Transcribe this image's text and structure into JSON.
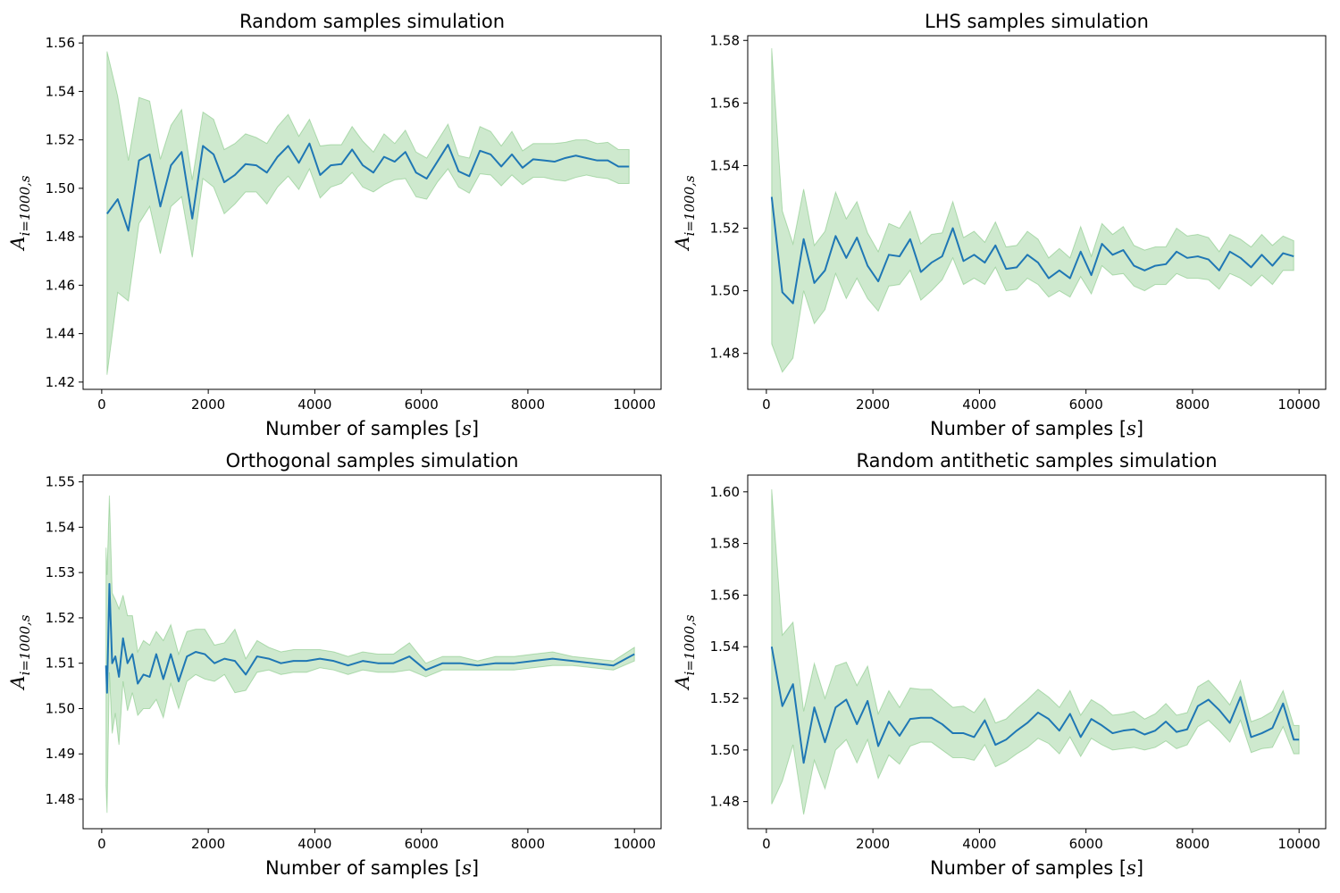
{
  "chart_data": [
    {
      "type": "line",
      "title": "Random samples simulation",
      "xlabel": "Number of samples [s]",
      "ylabel": "A_{i=1000,s}",
      "xlim": [
        -350,
        10500
      ],
      "ylim": [
        1.417,
        1.563
      ],
      "xticks": [
        0,
        2000,
        4000,
        6000,
        8000,
        10000
      ],
      "xtick_labels": [
        "0",
        "2000",
        "4000",
        "6000",
        "8000",
        "10000"
      ],
      "yticks": [
        1.42,
        1.44,
        1.46,
        1.48,
        1.5,
        1.52,
        1.54,
        1.56
      ],
      "ytick_labels": [
        "1.42",
        "1.44",
        "1.46",
        "1.48",
        "1.50",
        "1.52",
        "1.54",
        "1.56"
      ],
      "legend": "none",
      "grid": false,
      "x": [
        100,
        300,
        500,
        700,
        900,
        1100,
        1300,
        1500,
        1700,
        1900,
        2100,
        2300,
        2500,
        2700,
        2900,
        3100,
        3300,
        3500,
        3700,
        3900,
        4100,
        4300,
        4500,
        4700,
        4900,
        5100,
        5300,
        5500,
        5700,
        5900,
        6100,
        6300,
        6500,
        6700,
        6900,
        7100,
        7300,
        7500,
        7700,
        7900,
        8100,
        8300,
        8500,
        8700,
        8900,
        9100,
        9300,
        9500,
        9700,
        9900
      ],
      "series": [
        {
          "role": "mean",
          "values": [
            1.4895,
            1.4955,
            1.4825,
            1.5115,
            1.514,
            1.4925,
            1.5095,
            1.515,
            1.4875,
            1.5175,
            1.514,
            1.5025,
            1.5055,
            1.51,
            1.5095,
            1.5065,
            1.513,
            1.5175,
            1.5105,
            1.5185,
            1.5055,
            1.5095,
            1.51,
            1.516,
            1.5095,
            1.5065,
            1.513,
            1.511,
            1.515,
            1.5065,
            1.504,
            1.511,
            1.518,
            1.507,
            1.505,
            1.5155,
            1.514,
            1.509,
            1.514,
            1.5085,
            1.512,
            1.5115,
            1.511,
            1.5125,
            1.5135,
            1.5125,
            1.5115,
            1.5115,
            1.509,
            1.509
          ]
        },
        {
          "role": "lower",
          "values": [
            1.423,
            1.457,
            1.4535,
            1.4855,
            1.4925,
            1.473,
            1.4925,
            1.4965,
            1.4715,
            1.504,
            1.5005,
            1.4895,
            1.4935,
            1.4985,
            1.4985,
            1.4935,
            1.5005,
            1.505,
            1.4995,
            1.508,
            1.496,
            1.5005,
            1.502,
            1.5065,
            1.5005,
            1.4985,
            1.5015,
            1.5035,
            1.504,
            1.4965,
            1.4955,
            1.5025,
            1.508,
            1.5005,
            1.498,
            1.506,
            1.5055,
            1.501,
            1.5055,
            1.5015,
            1.5045,
            1.5045,
            1.5035,
            1.503,
            1.5045,
            1.5055,
            1.5045,
            1.504,
            1.502,
            1.502
          ]
        },
        {
          "role": "upper",
          "values": [
            1.5565,
            1.538,
            1.5115,
            1.5375,
            1.536,
            1.512,
            1.526,
            1.5325,
            1.5035,
            1.5315,
            1.5285,
            1.516,
            1.5185,
            1.5225,
            1.521,
            1.5185,
            1.5255,
            1.5305,
            1.5215,
            1.5285,
            1.5175,
            1.518,
            1.518,
            1.5255,
            1.5195,
            1.515,
            1.5225,
            1.5185,
            1.524,
            1.515,
            1.5125,
            1.5195,
            1.5265,
            1.5135,
            1.5125,
            1.5255,
            1.5235,
            1.5175,
            1.5235,
            1.5155,
            1.5185,
            1.5185,
            1.5185,
            1.519,
            1.52,
            1.52,
            1.5185,
            1.519,
            1.516,
            1.516
          ]
        }
      ]
    },
    {
      "type": "line",
      "title": "LHS samples simulation",
      "xlabel": "Number of samples [s]",
      "ylabel": "A_{i=1000,s}",
      "xlim": [
        -350,
        10500
      ],
      "ylim": [
        1.4685,
        1.5815
      ],
      "xticks": [
        0,
        2000,
        4000,
        6000,
        8000,
        10000
      ],
      "xtick_labels": [
        "0",
        "2000",
        "4000",
        "6000",
        "8000",
        "10000"
      ],
      "yticks": [
        1.48,
        1.5,
        1.52,
        1.54,
        1.56,
        1.58
      ],
      "ytick_labels": [
        "1.48",
        "1.50",
        "1.52",
        "1.54",
        "1.56",
        "1.58"
      ],
      "legend": "none",
      "grid": false,
      "x": [
        100,
        300,
        500,
        700,
        900,
        1100,
        1300,
        1500,
        1700,
        1900,
        2100,
        2300,
        2500,
        2700,
        2900,
        3100,
        3300,
        3500,
        3700,
        3900,
        4100,
        4300,
        4500,
        4700,
        4900,
        5100,
        5300,
        5500,
        5700,
        5900,
        6100,
        6300,
        6500,
        6700,
        6900,
        7100,
        7300,
        7500,
        7700,
        7900,
        8100,
        8300,
        8500,
        8700,
        8900,
        9100,
        9300,
        9500,
        9700,
        9900
      ],
      "series": [
        {
          "role": "mean",
          "values": [
            1.53,
            1.4995,
            1.496,
            1.5165,
            1.5025,
            1.5065,
            1.5175,
            1.5105,
            1.517,
            1.508,
            1.503,
            1.5115,
            1.511,
            1.5165,
            1.506,
            1.509,
            1.511,
            1.52,
            1.5095,
            1.5115,
            1.509,
            1.5145,
            1.507,
            1.5075,
            1.5115,
            1.509,
            1.504,
            1.5065,
            1.504,
            1.5125,
            1.505,
            1.515,
            1.5115,
            1.513,
            1.508,
            1.5065,
            1.508,
            1.5085,
            1.5125,
            1.5105,
            1.511,
            1.51,
            1.5065,
            1.5125,
            1.5105,
            1.5075,
            1.5115,
            1.508,
            1.512,
            1.511
          ]
        },
        {
          "role": "lower",
          "values": [
            1.483,
            1.474,
            1.4785,
            1.5,
            1.4895,
            1.494,
            1.5055,
            1.4975,
            1.504,
            1.4975,
            1.4935,
            1.5015,
            1.502,
            1.5065,
            1.497,
            1.5,
            1.5035,
            1.5105,
            1.502,
            1.504,
            1.502,
            1.5075,
            1.5,
            1.5005,
            1.504,
            1.502,
            1.498,
            1.5,
            1.498,
            1.5045,
            1.499,
            1.508,
            1.505,
            1.5055,
            1.5015,
            1.5,
            1.502,
            1.502,
            1.5055,
            1.504,
            1.504,
            1.5035,
            1.5005,
            1.5055,
            1.504,
            1.5015,
            1.505,
            1.502,
            1.5065,
            1.5065
          ]
        },
        {
          "role": "upper",
          "values": [
            1.5775,
            1.5255,
            1.515,
            1.5325,
            1.5145,
            1.519,
            1.5315,
            1.523,
            1.5285,
            1.5185,
            1.5125,
            1.5215,
            1.52,
            1.5255,
            1.515,
            1.518,
            1.5185,
            1.5285,
            1.517,
            1.519,
            1.5155,
            1.522,
            1.514,
            1.5145,
            1.519,
            1.5165,
            1.5105,
            1.5135,
            1.5105,
            1.5205,
            1.511,
            1.5215,
            1.518,
            1.5205,
            1.5145,
            1.513,
            1.514,
            1.514,
            1.52,
            1.5175,
            1.518,
            1.517,
            1.5125,
            1.518,
            1.5165,
            1.514,
            1.518,
            1.5145,
            1.5175,
            1.516
          ]
        }
      ]
    },
    {
      "type": "line",
      "title": "Orthogonal samples simulation",
      "xlabel": "Number of samples [s]",
      "ylabel": "A_{i=1000,s}",
      "xlim": [
        -350,
        10500
      ],
      "ylim": [
        1.4735,
        1.5515
      ],
      "xticks": [
        0,
        2000,
        4000,
        6000,
        8000,
        10000
      ],
      "xtick_labels": [
        "0",
        "2000",
        "4000",
        "6000",
        "8000",
        "10000"
      ],
      "yticks": [
        1.48,
        1.49,
        1.5,
        1.51,
        1.52,
        1.53,
        1.54,
        1.55
      ],
      "ytick_labels": [
        "1.48",
        "1.49",
        "1.50",
        "1.51",
        "1.52",
        "1.53",
        "1.54",
        "1.55"
      ],
      "legend": "none",
      "grid": false,
      "x": [
        81,
        100,
        144,
        196,
        256,
        324,
        400,
        484,
        576,
        676,
        784,
        900,
        1024,
        1156,
        1296,
        1444,
        1600,
        1764,
        1936,
        2116,
        2304,
        2500,
        2704,
        2916,
        3136,
        3364,
        3600,
        3844,
        4096,
        4356,
        4624,
        4900,
        5184,
        5476,
        5776,
        6084,
        6400,
        6724,
        7056,
        7396,
        7744,
        8100,
        8464,
        8836,
        9216,
        9604,
        10000
      ],
      "series": [
        {
          "role": "mean",
          "values": [
            1.5095,
            1.5035,
            1.5275,
            1.51,
            1.5115,
            1.507,
            1.5155,
            1.51,
            1.512,
            1.5055,
            1.5075,
            1.507,
            1.512,
            1.5065,
            1.512,
            1.506,
            1.5115,
            1.5125,
            1.512,
            1.51,
            1.511,
            1.5105,
            1.5075,
            1.5115,
            1.511,
            1.51,
            1.5105,
            1.5105,
            1.511,
            1.5105,
            1.5095,
            1.5105,
            1.51,
            1.51,
            1.5115,
            1.5085,
            1.51,
            1.51,
            1.5095,
            1.51,
            1.51,
            1.5105,
            1.511,
            1.5105,
            1.51,
            1.5095,
            1.512
          ]
        },
        {
          "role": "lower",
          "values": [
            1.483,
            1.477,
            1.508,
            1.4945,
            1.499,
            1.492,
            1.506,
            1.4995,
            1.5035,
            1.4985,
            1.5,
            1.5,
            1.502,
            1.498,
            1.5055,
            1.5,
            1.506,
            1.5075,
            1.5065,
            1.506,
            1.5075,
            1.5035,
            1.504,
            1.508,
            1.5085,
            1.5075,
            1.508,
            1.508,
            1.509,
            1.5085,
            1.5075,
            1.5085,
            1.508,
            1.508,
            1.5085,
            1.507,
            1.5085,
            1.5085,
            1.5085,
            1.5085,
            1.5085,
            1.509,
            1.5095,
            1.5095,
            1.509,
            1.5085,
            1.5105
          ]
        },
        {
          "role": "upper",
          "values": [
            1.5355,
            1.5295,
            1.547,
            1.5255,
            1.524,
            1.522,
            1.525,
            1.5205,
            1.5205,
            1.5125,
            1.515,
            1.514,
            1.517,
            1.515,
            1.5185,
            1.512,
            1.517,
            1.5175,
            1.5175,
            1.514,
            1.5145,
            1.5175,
            1.511,
            1.515,
            1.5135,
            1.5125,
            1.513,
            1.513,
            1.513,
            1.5125,
            1.5115,
            1.5125,
            1.512,
            1.512,
            1.5145,
            1.51,
            1.5115,
            1.5115,
            1.5105,
            1.5115,
            1.5115,
            1.512,
            1.5125,
            1.5115,
            1.511,
            1.5105,
            1.5135
          ]
        }
      ]
    },
    {
      "type": "line",
      "title": "Random antithetic samples simulation",
      "xlabel": "Number of samples [s]",
      "ylabel": "A_{i=1000,s}",
      "xlim": [
        -350,
        10500
      ],
      "ylim": [
        1.4695,
        1.6065
      ],
      "xticks": [
        0,
        2000,
        4000,
        6000,
        8000,
        10000
      ],
      "xtick_labels": [
        "0",
        "2000",
        "4000",
        "6000",
        "8000",
        "10000"
      ],
      "yticks": [
        1.48,
        1.5,
        1.52,
        1.54,
        1.56,
        1.58,
        1.6
      ],
      "ytick_labels": [
        "1.48",
        "1.50",
        "1.52",
        "1.54",
        "1.56",
        "1.58",
        "1.60"
      ],
      "legend": "none",
      "grid": false,
      "x": [
        100,
        300,
        500,
        700,
        900,
        1100,
        1300,
        1500,
        1700,
        1900,
        2100,
        2300,
        2500,
        2700,
        2900,
        3100,
        3300,
        3500,
        3700,
        3900,
        4100,
        4300,
        4500,
        4700,
        4900,
        5100,
        5300,
        5500,
        5700,
        5900,
        6100,
        6300,
        6500,
        6700,
        6900,
        7100,
        7300,
        7500,
        7700,
        7900,
        8100,
        8300,
        8500,
        8700,
        8900,
        9100,
        9300,
        9500,
        9700,
        9900,
        10000
      ],
      "series": [
        {
          "role": "mean",
          "values": [
            1.54,
            1.517,
            1.5255,
            1.495,
            1.5165,
            1.503,
            1.5165,
            1.5195,
            1.51,
            1.519,
            1.5015,
            1.511,
            1.5055,
            1.512,
            1.5125,
            1.5125,
            1.51,
            1.5065,
            1.5065,
            1.505,
            1.5115,
            1.502,
            1.504,
            1.5075,
            1.5105,
            1.5145,
            1.512,
            1.5075,
            1.514,
            1.505,
            1.512,
            1.5095,
            1.5065,
            1.5075,
            1.508,
            1.506,
            1.5075,
            1.511,
            1.507,
            1.508,
            1.517,
            1.5195,
            1.5155,
            1.5105,
            1.5205,
            1.505,
            1.5065,
            1.5085,
            1.518,
            1.504,
            1.504
          ]
        },
        {
          "role": "lower",
          "values": [
            1.479,
            1.488,
            1.502,
            1.475,
            1.496,
            1.485,
            1.5,
            1.504,
            1.495,
            1.504,
            1.489,
            1.498,
            1.4945,
            1.5015,
            1.503,
            1.503,
            1.5,
            1.497,
            1.497,
            1.496,
            1.502,
            1.4935,
            1.4955,
            1.4985,
            1.501,
            1.5045,
            1.5025,
            1.4985,
            1.505,
            1.4975,
            1.5045,
            1.502,
            1.5,
            1.5005,
            1.501,
            1.5,
            1.501,
            1.5035,
            1.5005,
            1.502,
            1.509,
            1.5115,
            1.5075,
            1.503,
            1.5115,
            1.499,
            1.5005,
            1.501,
            1.509,
            1.4985,
            1.4985
          ]
        },
        {
          "role": "upper",
          "values": [
            1.601,
            1.5445,
            1.5495,
            1.515,
            1.5335,
            1.52,
            1.5325,
            1.534,
            1.525,
            1.5325,
            1.514,
            1.523,
            1.5165,
            1.524,
            1.5235,
            1.5235,
            1.52,
            1.5165,
            1.517,
            1.5145,
            1.52,
            1.5105,
            1.512,
            1.516,
            1.5195,
            1.5235,
            1.5205,
            1.5165,
            1.523,
            1.5135,
            1.5195,
            1.517,
            1.5135,
            1.514,
            1.515,
            1.512,
            1.514,
            1.518,
            1.5135,
            1.5145,
            1.5245,
            1.527,
            1.5225,
            1.5175,
            1.527,
            1.511,
            1.5125,
            1.515,
            1.523,
            1.5095,
            1.5095
          ]
        }
      ]
    }
  ]
}
